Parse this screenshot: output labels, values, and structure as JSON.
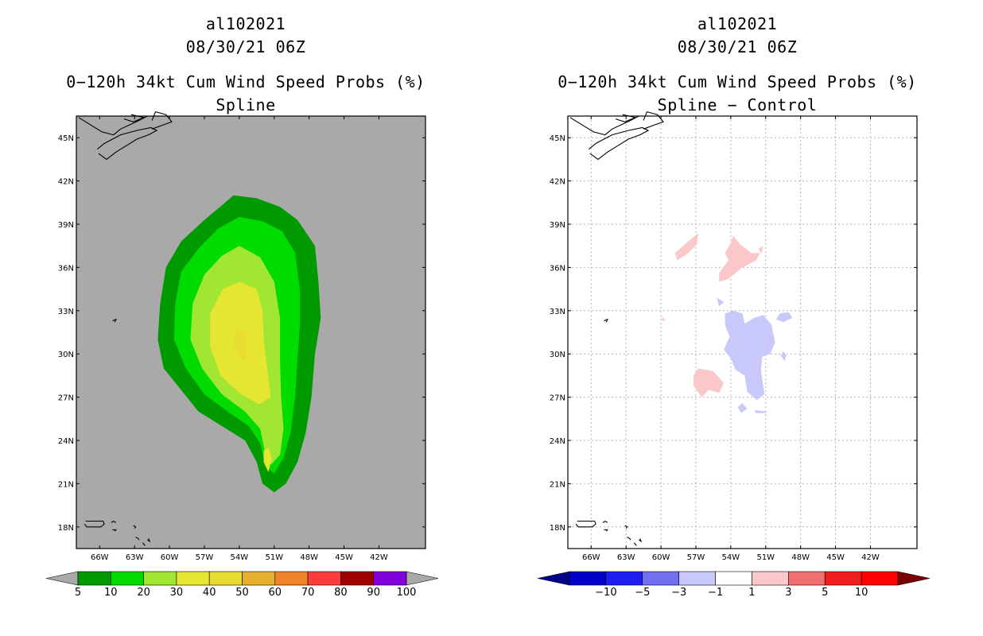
{
  "panels": [
    {
      "id": "left",
      "storm_id": "al102021",
      "datetime": "08/30/21 06Z",
      "product": "0−120h 34kt Cum Wind Speed Probs (%)",
      "subtitle": "Spline",
      "background": "#a9a9a9",
      "gridlines": false
    },
    {
      "id": "right",
      "storm_id": "al102021",
      "datetime": "08/30/21 06Z",
      "product": "0−120h 34kt Cum Wind Speed Probs (%)",
      "subtitle": "Spline − Control",
      "background": "#ffffff",
      "gridlines": true
    }
  ],
  "map": {
    "lon_range": [
      -68.0,
      -38.0
    ],
    "lat_range": [
      16.5,
      46.5
    ],
    "lon_ticks": [
      -66,
      -63,
      -60,
      -57,
      -54,
      -51,
      -48,
      -45,
      -42
    ],
    "lon_tick_labels": [
      "66W",
      "63W",
      "60W",
      "57W",
      "54W",
      "51W",
      "48W",
      "45W",
      "42W"
    ],
    "lat_ticks": [
      18,
      21,
      24,
      27,
      30,
      33,
      36,
      39,
      42,
      45
    ],
    "lat_tick_labels": [
      "18N",
      "21N",
      "24N",
      "27N",
      "30N",
      "33N",
      "36N",
      "39N",
      "42N",
      "45N"
    ]
  },
  "colorbars": {
    "left": {
      "labels": [
        "5",
        "10",
        "20",
        "30",
        "40",
        "50",
        "60",
        "70",
        "80",
        "90",
        "100"
      ],
      "colors": [
        "#009a00",
        "#00dc00",
        "#a0e632",
        "#e6e632",
        "#e6dc32",
        "#e6af2d",
        "#f08228",
        "#fa3c3c",
        "#a00000",
        "#8200dc"
      ],
      "under_color": "#a9a9a9",
      "over_color": "#a9a9a9"
    },
    "right": {
      "labels": [
        "−10",
        "−5",
        "−3",
        "−1",
        "1",
        "3",
        "5",
        "10"
      ],
      "colors": [
        "#0000c8",
        "#1e1ef0",
        "#7070f0",
        "#c8c8fa",
        "#ffffff",
        "#fac8c8",
        "#f07070",
        "#f01e1e",
        "#ff0000"
      ],
      "under_color": "#00008b",
      "over_color": "#7d0000"
    }
  },
  "probability_field": {
    "units": "%",
    "contours": [
      {
        "threshold": 5,
        "color": "#009a00"
      },
      {
        "threshold": 10,
        "color": "#00dc00"
      },
      {
        "threshold": 20,
        "color": "#a0e632"
      },
      {
        "threshold": 30,
        "color": "#e6e632"
      },
      {
        "threshold": 40,
        "color": "#e6dc32"
      }
    ]
  },
  "difference_field": {
    "units": "%",
    "positive_color": "#fac8c8",
    "negative_color": "#c8c8fa"
  }
}
